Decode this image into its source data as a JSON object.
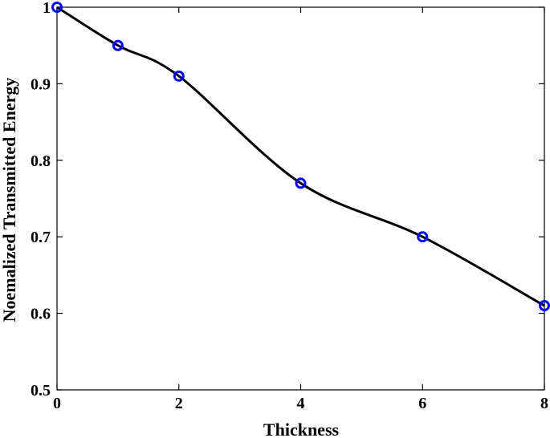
{
  "chart_data": {
    "type": "line",
    "title": "",
    "xlabel": "Thickness",
    "ylabel": "Noemalized Transmitted Energy",
    "xlim": [
      0,
      8
    ],
    "ylim": [
      0.5,
      1
    ],
    "xticks": [
      0,
      2,
      4,
      6,
      8
    ],
    "yticks": [
      0.5,
      0.6,
      0.7,
      0.8,
      0.9,
      1
    ],
    "xtick_labels": [
      "0",
      "2",
      "4",
      "6",
      "8"
    ],
    "ytick_labels": [
      "0.5",
      "0.6",
      "0.7",
      "0.8",
      "0.9",
      "1"
    ],
    "grid": false,
    "legend": "none",
    "series": [
      {
        "x": [
          0,
          1,
          2,
          4,
          6,
          8
        ],
        "y": [
          1.0,
          0.95,
          0.91,
          0.77,
          0.7,
          0.61
        ],
        "line_color": "#000000",
        "marker": "circle",
        "marker_color": "#0000ff",
        "smooth": true
      }
    ]
  }
}
